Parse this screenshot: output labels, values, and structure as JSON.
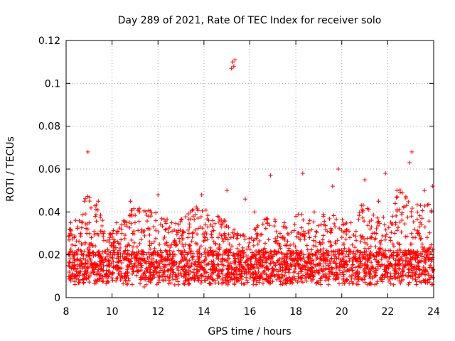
{
  "chart_data": {
    "type": "scatter",
    "title": "Day 289 of 2021, Rate Of TEC Index for receiver solo",
    "xlabel": "GPS time / hours",
    "ylabel": "ROTI / TECUs",
    "xlim": [
      8,
      24
    ],
    "ylim": [
      0,
      0.12
    ],
    "xticks": [
      8,
      10,
      12,
      14,
      16,
      18,
      20,
      22,
      24
    ],
    "xtick_labels": [
      "8",
      "10",
      "12",
      "14",
      "16",
      "18",
      "20",
      "22",
      "24"
    ],
    "yticks": [
      0,
      0.02,
      0.04,
      0.06,
      0.08,
      0.1,
      0.12
    ],
    "ytick_labels": [
      "0",
      "0.02",
      "0.04",
      "0.06",
      "0.08",
      "0.1",
      "0.12"
    ],
    "grid": true,
    "marker": "+",
    "color": "#ff0000",
    "series": [
      {
        "name": "ROTI",
        "x": [
          8.1,
          8.3,
          8.5,
          8.7,
          8.9,
          9.0,
          9.1,
          9.3,
          9.5,
          9.7,
          9.9,
          10.1,
          10.3,
          10.5,
          10.7,
          10.9,
          11.0,
          11.1,
          11.3,
          11.5,
          11.7,
          11.9,
          12.1,
          12.3,
          12.5,
          12.7,
          12.9,
          13.1,
          13.3,
          13.5,
          13.7,
          13.9,
          14.1,
          14.3,
          14.5,
          14.7,
          14.9,
          15.1,
          15.2,
          15.3,
          15.5,
          15.7,
          15.9,
          16.1,
          16.3,
          16.5,
          16.7,
          16.9,
          17.1,
          17.3,
          17.5,
          17.7,
          17.9,
          18.1,
          18.2,
          18.3,
          18.5,
          18.7,
          18.9,
          19.1,
          19.3,
          19.5,
          19.7,
          19.9,
          20.1,
          20.3,
          20.5,
          20.7,
          20.9,
          21.1,
          21.3,
          21.5,
          21.7,
          21.9,
          22.1,
          22.3,
          22.5,
          22.7,
          22.9,
          23.0,
          23.1,
          23.3,
          23.5,
          23.7,
          23.9,
          8.2,
          8.8,
          8.95,
          9.4,
          10.2,
          10.8,
          11.2,
          11.6,
          12.0,
          12.6,
          13.4,
          13.9,
          14.6,
          15.0,
          15.25,
          15.35,
          15.8,
          16.2,
          16.9,
          17.5,
          18.0,
          18.3,
          18.8,
          19.6,
          19.85,
          20.4,
          20.9,
          21.0,
          21.6,
          21.9,
          22.4,
          22.95,
          23.05,
          23.6,
          23.95,
          8.4,
          9.2,
          10.4,
          11.4,
          12.4,
          13.2,
          14.2,
          15.4,
          16.4,
          17.2,
          18.4,
          19.2,
          20.2,
          21.2,
          22.2,
          23.2,
          8.6,
          9.6,
          10.6,
          11.8,
          12.8,
          13.6,
          14.8,
          15.6,
          16.6,
          17.6,
          18.6,
          19.4,
          20.6,
          21.4,
          22.6,
          23.4,
          8.15,
          9.05,
          10.05,
          11.05,
          12.05,
          13.05,
          14.05,
          15.05,
          16.05,
          17.05,
          18.05,
          19.05,
          20.05,
          21.05,
          22.05,
          23.05,
          8.35,
          9.35,
          10.35,
          11.35,
          12.35,
          13.35,
          14.35,
          15.45,
          16.35,
          17.35,
          18.35,
          19.35,
          20.35,
          21.35,
          22.35,
          23.35
        ],
        "y": [
          0.015,
          0.02,
          0.018,
          0.025,
          0.03,
          0.035,
          0.028,
          0.02,
          0.016,
          0.018,
          0.015,
          0.02,
          0.022,
          0.018,
          0.025,
          0.03,
          0.035,
          0.02,
          0.015,
          0.012,
          0.018,
          0.02,
          0.022,
          0.018,
          0.02,
          0.025,
          0.022,
          0.02,
          0.028,
          0.03,
          0.025,
          0.02,
          0.018,
          0.022,
          0.025,
          0.02,
          0.03,
          0.025,
          0.107,
          0.108,
          0.02,
          0.022,
          0.018,
          0.015,
          0.02,
          0.022,
          0.018,
          0.016,
          0.015,
          0.018,
          0.02,
          0.022,
          0.025,
          0.02,
          0.018,
          0.015,
          0.016,
          0.014,
          0.018,
          0.02,
          0.017,
          0.016,
          0.02,
          0.022,
          0.025,
          0.02,
          0.018,
          0.022,
          0.02,
          0.025,
          0.028,
          0.03,
          0.025,
          0.022,
          0.028,
          0.03,
          0.025,
          0.02,
          0.022,
          0.025,
          0.028,
          0.03,
          0.025,
          0.02,
          0.018,
          0.035,
          0.045,
          0.068,
          0.045,
          0.035,
          0.045,
          0.04,
          0.038,
          0.048,
          0.035,
          0.04,
          0.048,
          0.038,
          0.05,
          0.11,
          0.111,
          0.046,
          0.04,
          0.057,
          0.035,
          0.038,
          0.058,
          0.04,
          0.052,
          0.06,
          0.035,
          0.04,
          0.055,
          0.045,
          0.058,
          0.05,
          0.063,
          0.068,
          0.05,
          0.052,
          0.01,
          0.012,
          0.01,
          0.005,
          0.01,
          0.008,
          0.01,
          0.012,
          0.008,
          0.01,
          0.009,
          0.01,
          0.008,
          0.01,
          0.009,
          0.01,
          0.012,
          0.01,
          0.008,
          0.012,
          0.01,
          0.009,
          0.011,
          0.01,
          0.012,
          0.009,
          0.01,
          0.011,
          0.01,
          0.012,
          0.01,
          0.011,
          0.02,
          0.025,
          0.022,
          0.018,
          0.02,
          0.025,
          0.028,
          0.022,
          0.018,
          0.02,
          0.022,
          0.018,
          0.025,
          0.02,
          0.022,
          0.025,
          0.028,
          0.03,
          0.025,
          0.02,
          0.025,
          0.03,
          0.028,
          0.03,
          0.025,
          0.028,
          0.02,
          0.022,
          0.028,
          0.03,
          0.035,
          0.03
        ]
      }
    ]
  }
}
